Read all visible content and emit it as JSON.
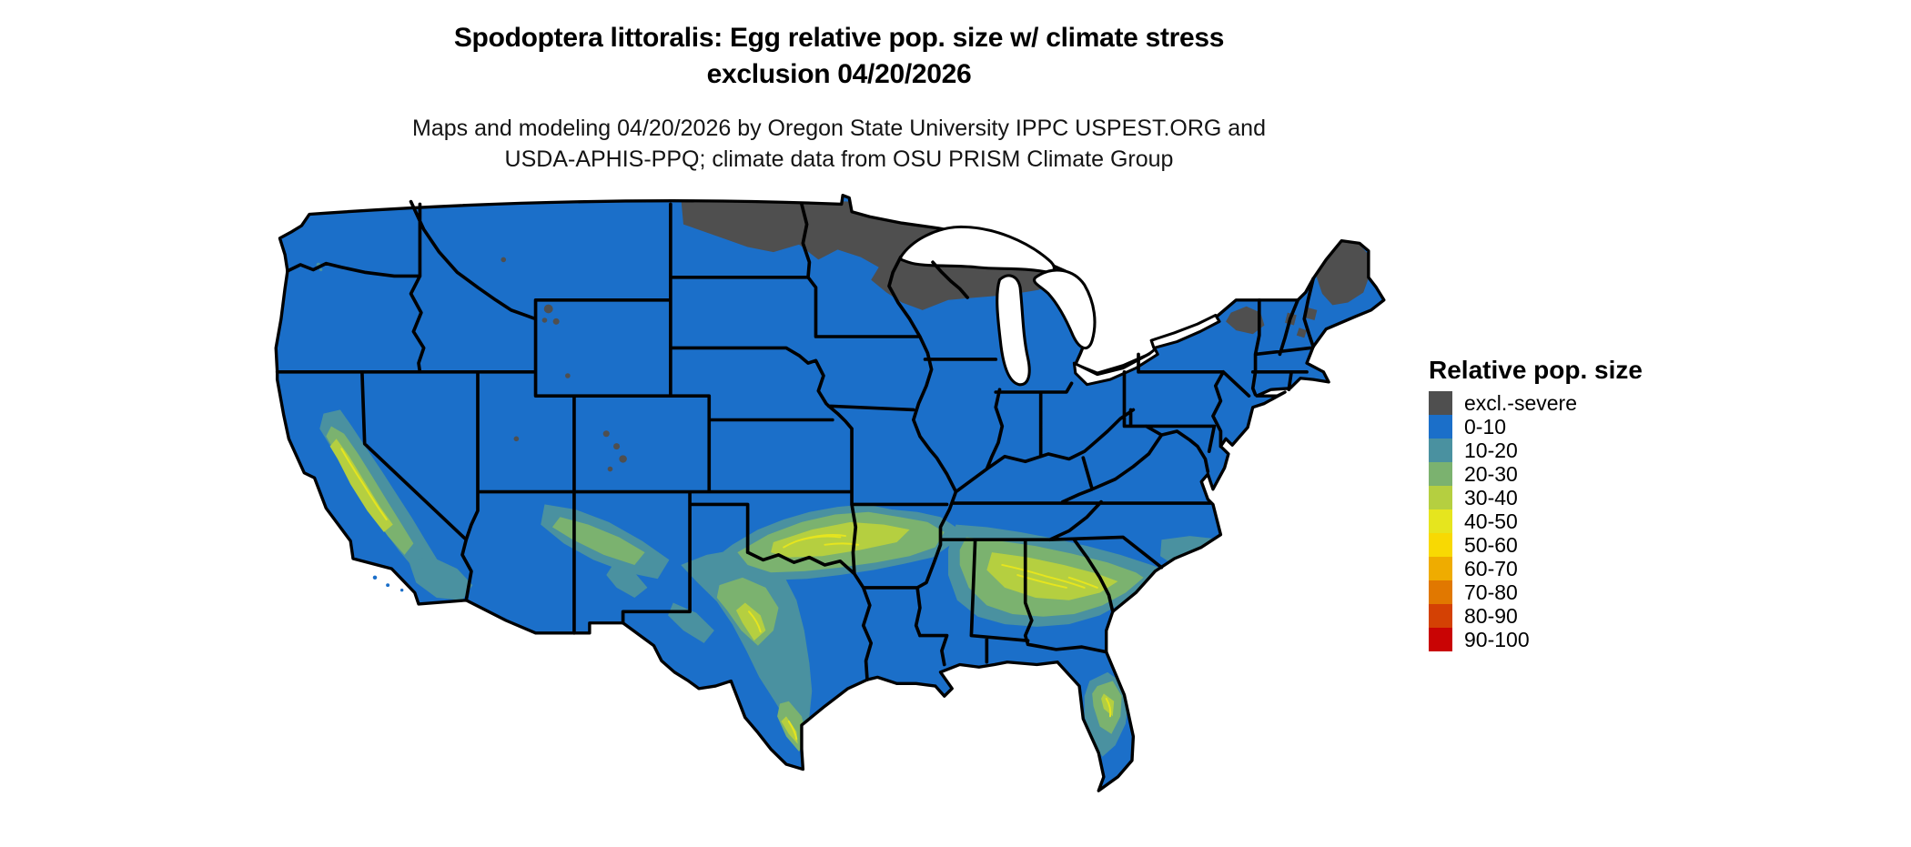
{
  "title": {
    "line1": "Spodoptera littoralis: Egg relative pop. size w/ climate stress",
    "line2": "exclusion 04/20/2026"
  },
  "subtitle": {
    "line1": "Maps and modeling 04/20/2026 by Oregon State University IPPC USPEST.ORG and",
    "line2": "USDA-APHIS-PPQ; climate data from OSU PRISM Climate Group"
  },
  "legend": {
    "title": "Relative pop. size",
    "items": [
      {
        "label": "excl.-severe",
        "color": "#4F4F4F"
      },
      {
        "label": "0-10",
        "color": "#1B6FC9"
      },
      {
        "label": "10-20",
        "color": "#4A91A0"
      },
      {
        "label": "20-30",
        "color": "#7BB26F"
      },
      {
        "label": "30-40",
        "color": "#B5CF40"
      },
      {
        "label": "40-50",
        "color": "#E6E51E"
      },
      {
        "label": "50-60",
        "color": "#F8D903"
      },
      {
        "label": "60-70",
        "color": "#EFAC00"
      },
      {
        "label": "70-80",
        "color": "#E17800"
      },
      {
        "label": "80-90",
        "color": "#D44104"
      },
      {
        "label": "90-100",
        "color": "#C90404"
      }
    ]
  },
  "map": {
    "kind": "CONUS choropleth raster, state borders in black on white background",
    "colors": {
      "base": "#1B6FC9",
      "excluded": "#4F4F4F",
      "teal": "#4A91A0",
      "green": "#7BB26F",
      "yellowgreen": "#B5CF40",
      "yellow": "#E6E51E",
      "border": "#000000",
      "water": "#FFFFFF"
    },
    "regions": {
      "excluded_severe": "northern North Dakota, northern Minnesota, northern Wisconsin, upper Michigan, Adirondacks (NY), northern New England and Maine, scattered high Rockies",
      "value_0_10": "most of the continental US",
      "moderate_belt_10_50": "central/south Texas, Oklahoma, Arkansas, Mississippi, Alabama, Georgia, South Carolina, coastal Carolinas, central California valley, southern Arizona / New Mexico patches, central Florida"
    }
  }
}
